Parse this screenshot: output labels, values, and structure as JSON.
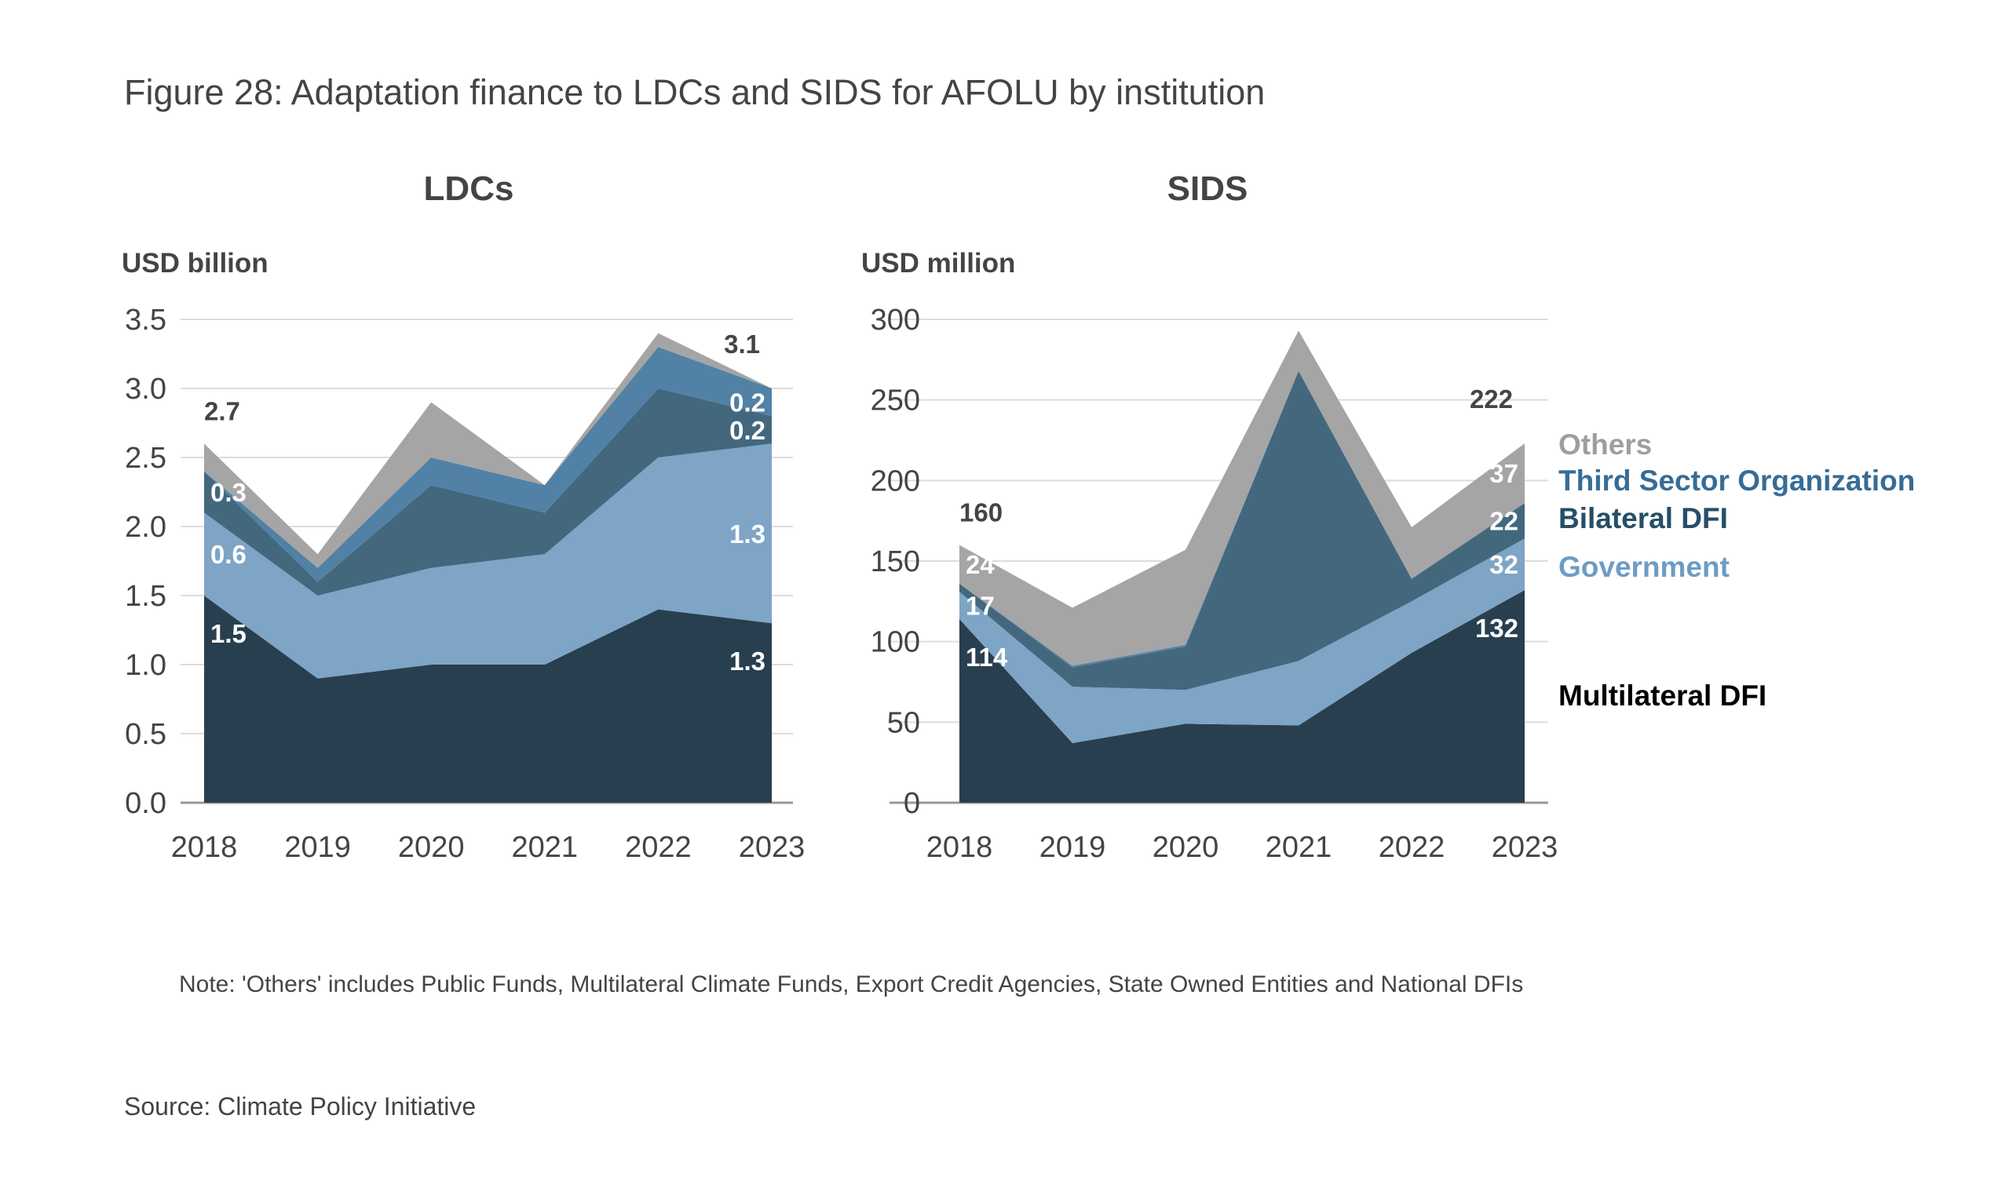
{
  "title": "Figure 28: Adaptation finance to LDCs and SIDS for AFOLU by institution",
  "note": "Note: 'Others' includes Public Funds, Multilateral Climate Funds, Export Credit Agencies, State Owned Entities and National DFIs",
  "source": "Source: Climate Policy Initiative",
  "legend": [
    {
      "name": "Others",
      "color": "#9e9e9e"
    },
    {
      "name": "Third Sector Organization",
      "color": "#376c96"
    },
    {
      "name": "Bilateral DFI",
      "color": "#264e66"
    },
    {
      "name": "Government",
      "color": "#6d9cc4"
    },
    {
      "name": "Multilateral DFI",
      "color": "#000000"
    }
  ],
  "series_colors": {
    "Multilateral DFI": "#283f4f",
    "Government": "#7ea4c6",
    "Bilateral DFI": "#43687e",
    "Third Sector Organization": "#5181a5",
    "Others": "#a5a5a5"
  },
  "chart_data": [
    {
      "type": "area",
      "stacked": true,
      "title": "LDCs",
      "ylabel": "USD billion",
      "xlabel": "",
      "ylim": [
        0,
        3.5
      ],
      "yticks": [
        "0.0",
        "0.5",
        "1.0",
        "1.5",
        "2.0",
        "2.5",
        "3.0",
        "3.5"
      ],
      "ytick_values": [
        0,
        0.5,
        1.0,
        1.5,
        2.0,
        2.5,
        3.0,
        3.5
      ],
      "grid": true,
      "categories": [
        "2018",
        "2019",
        "2020",
        "2021",
        "2022",
        "2023"
      ],
      "series": [
        {
          "name": "Multilateral DFI",
          "values": [
            1.5,
            0.9,
            1.0,
            1.0,
            1.4,
            1.3
          ]
        },
        {
          "name": "Government",
          "values": [
            0.6,
            0.6,
            0.7,
            0.8,
            1.1,
            1.3
          ]
        },
        {
          "name": "Bilateral DFI",
          "values": [
            0.3,
            0.1,
            0.6,
            0.3,
            0.5,
            0.2
          ]
        },
        {
          "name": "Third Sector Organization",
          "values": [
            0.0,
            0.1,
            0.2,
            0.2,
            0.3,
            0.2
          ]
        },
        {
          "name": "Others",
          "values": [
            0.2,
            0.1,
            0.4,
            0.0,
            0.1,
            0.0
          ]
        }
      ],
      "annotations": [
        {
          "text": "2.7",
          "x": "2018",
          "kind": "total"
        },
        {
          "text": "0.3",
          "x": "2018",
          "series": "Bilateral DFI"
        },
        {
          "text": "0.6",
          "x": "2018",
          "series": "Government"
        },
        {
          "text": "1.5",
          "x": "2018",
          "series": "Multilateral DFI"
        },
        {
          "text": "3.1",
          "x": "2023",
          "kind": "total"
        },
        {
          "text": "0.2",
          "x": "2023",
          "series": "Third Sector Organization"
        },
        {
          "text": "0.2",
          "x": "2023",
          "series": "Bilateral DFI"
        },
        {
          "text": "1.3",
          "x": "2023",
          "series": "Government"
        },
        {
          "text": "1.3",
          "x": "2023",
          "series": "Multilateral DFI"
        }
      ]
    },
    {
      "type": "area",
      "stacked": true,
      "title": "SIDS",
      "ylabel": "USD million",
      "xlabel": "",
      "ylim": [
        0,
        300
      ],
      "yticks": [
        "0",
        "50",
        "100",
        "150",
        "200",
        "250",
        "300"
      ],
      "ytick_values": [
        0,
        50,
        100,
        150,
        200,
        250,
        300
      ],
      "grid": true,
      "categories": [
        "2018",
        "2019",
        "2020",
        "2021",
        "2022",
        "2023"
      ],
      "series": [
        {
          "name": "Multilateral DFI",
          "values": [
            114,
            37,
            49,
            48,
            93,
            132
          ]
        },
        {
          "name": "Government",
          "values": [
            17,
            35,
            21,
            40,
            32,
            32
          ]
        },
        {
          "name": "Bilateral DFI",
          "values": [
            5,
            12,
            27,
            180,
            14,
            22
          ]
        },
        {
          "name": "Third Sector Organization",
          "values": [
            0,
            1,
            1,
            0,
            0,
            0
          ]
        },
        {
          "name": "Others",
          "values": [
            24,
            36,
            59,
            25,
            32,
            37
          ]
        }
      ],
      "annotations": [
        {
          "text": "160",
          "x": "2018",
          "kind": "total"
        },
        {
          "text": "24",
          "x": "2018",
          "series": "Others"
        },
        {
          "text": "17",
          "x": "2018",
          "series": "Government"
        },
        {
          "text": "114",
          "x": "2018",
          "series": "Multilateral DFI"
        },
        {
          "text": "222",
          "x": "2023",
          "kind": "total"
        },
        {
          "text": "37",
          "x": "2023",
          "series": "Others"
        },
        {
          "text": "22",
          "x": "2023",
          "series": "Bilateral DFI"
        },
        {
          "text": "32",
          "x": "2023",
          "series": "Government"
        },
        {
          "text": "132",
          "x": "2023",
          "series": "Multilateral DFI"
        }
      ]
    }
  ]
}
